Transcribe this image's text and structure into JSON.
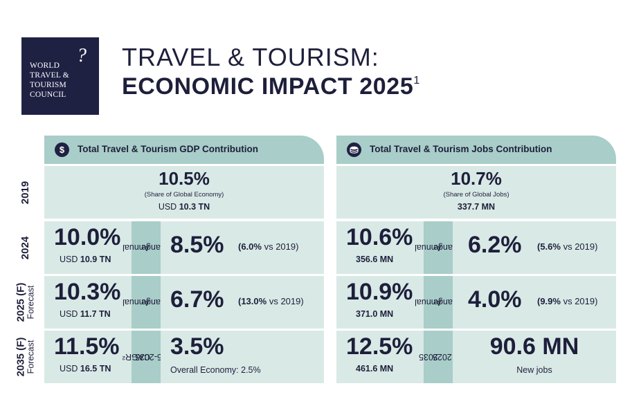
{
  "logo": {
    "lines": [
      "WORLD",
      "TRAVEL &",
      "TOURISM",
      "COUNCIL"
    ],
    "mark": "?"
  },
  "title": {
    "line1": "TRAVEL & TOURISM:",
    "line2": "ECONOMIC IMPACT 2025",
    "footnote": "1"
  },
  "row_labels": {
    "y2019": "2019",
    "y2024": "2024",
    "y2025": "2025 (F)",
    "y2025_sub": "Forecast",
    "y2035": "2035 (F)",
    "y2035_sub": "Forecast"
  },
  "gdp": {
    "header_icon": "$",
    "header": "Total Travel & Tourism GDP Contribution",
    "r2019": {
      "share": "10.5%",
      "note": "(Share of Global Economy)",
      "usd_prefix": "USD",
      "usd_value": "10.3 TN"
    },
    "r2024": {
      "share": "10.0%",
      "usd_prefix": "USD",
      "usd_value": "10.9 TN",
      "tab_line1": "Annual",
      "tab_line2": "change",
      "change": "8.5%",
      "vs_value": "(6.0%",
      "vs_text": "vs 2019)"
    },
    "r2025": {
      "share": "10.3%",
      "usd_prefix": "USD",
      "usd_value": "11.7 TN",
      "tab_line1": "Annual",
      "tab_line2": "change",
      "change": "6.7%",
      "vs_value": "(13.0%",
      "vs_text": "vs 2019)"
    },
    "r2035": {
      "share": "11.5%",
      "usd_prefix": "USD",
      "usd_value": "16.5 TN",
      "tab_line1": "CAGR²",
      "tab_line2": "2025-2035",
      "change": "3.5%",
      "overall": "Overall Economy: 2.5%"
    }
  },
  "jobs": {
    "header_icon": "coins-icon",
    "header": "Total Travel & Tourism Jobs Contribution",
    "r2019": {
      "share": "10.7%",
      "note": "(Share of Global Jobs)",
      "count": "337.7 MN"
    },
    "r2024": {
      "share": "10.6%",
      "count": "356.6 MN",
      "tab_line1": "Annual",
      "tab_line2": "change",
      "change": "6.2%",
      "vs_value": "(5.6%",
      "vs_text": "vs 2019)"
    },
    "r2025": {
      "share": "10.9%",
      "count": "371.0 MN",
      "tab_line1": "Annual",
      "tab_line2": "change",
      "change": "4.0%",
      "vs_value": "(9.9%",
      "vs_text": "vs 2019)"
    },
    "r2035": {
      "share": "12.5%",
      "count": "461.6 MN",
      "tab_line1": "2035",
      "tab_line2": "vs 2025",
      "new_jobs": "90.6 MN",
      "new_jobs_label": "New jobs"
    }
  },
  "colors": {
    "navy": "#1f2143",
    "header_teal": "#a9cdc8",
    "cell_bg": "#d9e9e6"
  }
}
